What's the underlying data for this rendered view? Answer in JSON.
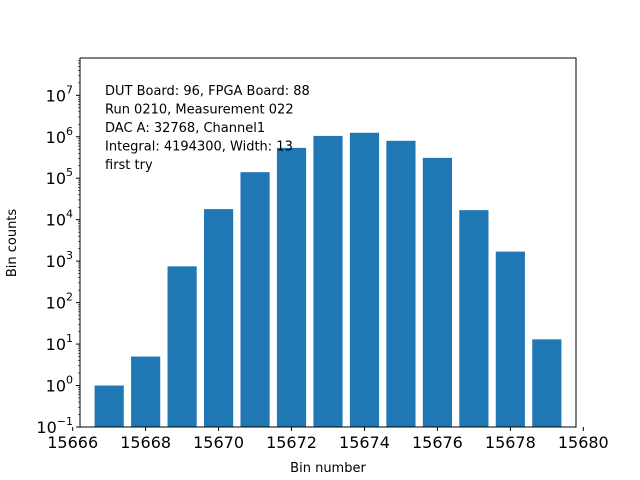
{
  "chart_data": {
    "type": "bar",
    "title": "",
    "xlabel": "Bin number",
    "ylabel": "Bin counts",
    "yscale": "log",
    "xlim": [
      15666.2,
      15679.8
    ],
    "ylim_exp": [
      -1,
      7.9
    ],
    "x": [
      15667,
      15668,
      15669,
      15670,
      15671,
      15672,
      15673,
      15674,
      15675,
      15676,
      15677,
      15678,
      15679
    ],
    "values": [
      1,
      5,
      750,
      18000,
      140000,
      540000,
      1050000,
      1250000,
      800000,
      310000,
      17000,
      1700,
      13
    ],
    "bar_width": 0.8,
    "bar_color": "#1f77b4",
    "x_ticks": [
      15666,
      15668,
      15670,
      15672,
      15674,
      15676,
      15678,
      15680
    ],
    "y_tick_exponents": [
      -1,
      0,
      1,
      2,
      3,
      4,
      5,
      6,
      7
    ],
    "annotation": [
      "DUT Board: 96, FPGA Board: 88",
      "Run 0210, Measurement 022",
      "DAC A: 32768, Channel1",
      "Integral: 4194300, Width: 13",
      "first try"
    ]
  }
}
